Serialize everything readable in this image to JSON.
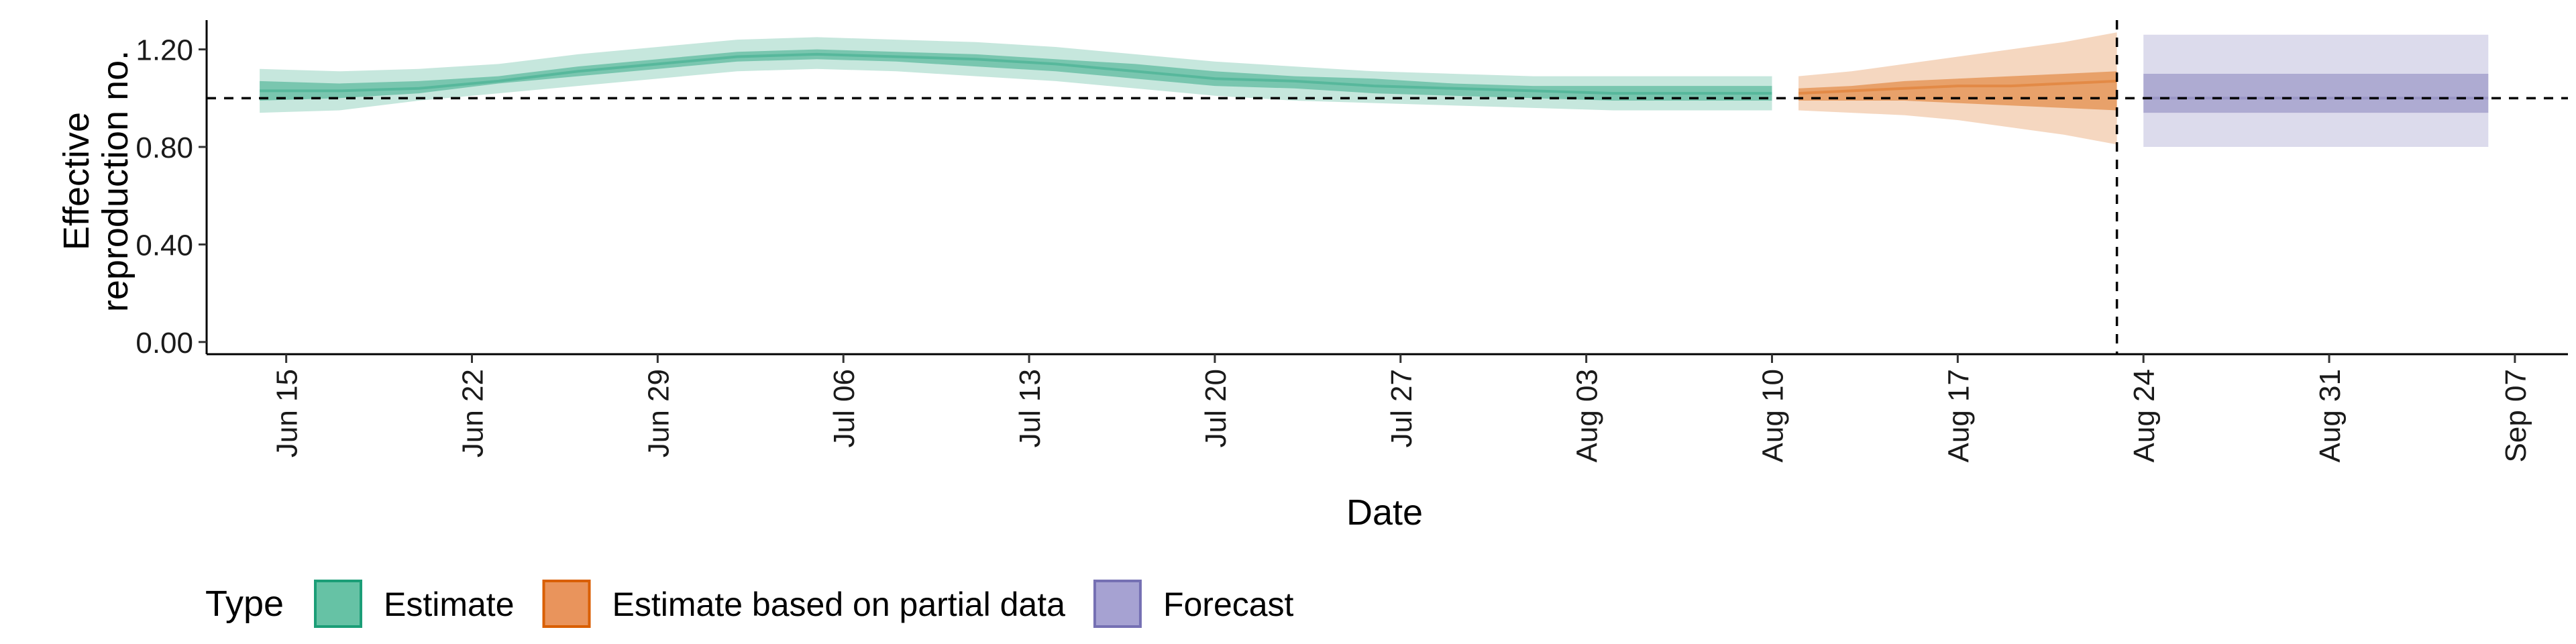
{
  "chart_data": {
    "type": "area",
    "xlabel": "Date",
    "ylabel_lines": [
      "Effective",
      "reproduction no."
    ],
    "yticks": [
      "0.00",
      "0.40",
      "0.80",
      "1.20"
    ],
    "ytick_values": [
      0.0,
      0.4,
      0.8,
      1.2
    ],
    "ylim": [
      -0.05,
      1.32
    ],
    "xlim": [
      "2020-06-12",
      "2020-09-09"
    ],
    "xticks": [
      "Jun 15",
      "Jun 22",
      "Jun 29",
      "Jul 06",
      "Jul 13",
      "Jul 20",
      "Jul 27",
      "Aug 03",
      "Aug 10",
      "Aug 17",
      "Aug 24",
      "Aug 31",
      "Sep 07"
    ],
    "xtick_dates": [
      "2020-06-15",
      "2020-06-22",
      "2020-06-29",
      "2020-07-06",
      "2020-07-13",
      "2020-07-20",
      "2020-07-27",
      "2020-08-03",
      "2020-08-10",
      "2020-08-17",
      "2020-08-24",
      "2020-08-31",
      "2020-09-07"
    ],
    "reference_line_y": 1.0,
    "vertical_line_date": "2020-08-23",
    "grid": false,
    "legend": {
      "title": "Type",
      "position": "bottom-left",
      "items": [
        {
          "label": "Estimate",
          "fill": "#66c2a5",
          "stroke": "#1b9e77"
        },
        {
          "label": "Estimate based on partial data",
          "fill": "#e9945c",
          "stroke": "#d95f02"
        },
        {
          "label": "Forecast",
          "fill": "#a6a2d2",
          "stroke": "#7570b3"
        }
      ]
    },
    "series": [
      {
        "name": "Estimate",
        "color": "#1b9e77",
        "dates": [
          "2020-06-14",
          "2020-06-17",
          "2020-06-20",
          "2020-06-23",
          "2020-06-26",
          "2020-06-29",
          "2020-07-02",
          "2020-07-05",
          "2020-07-08",
          "2020-07-11",
          "2020-07-14",
          "2020-07-17",
          "2020-07-20",
          "2020-07-23",
          "2020-07-26",
          "2020-07-29",
          "2020-08-01",
          "2020-08-04",
          "2020-08-07",
          "2020-08-10"
        ],
        "lower90": [
          0.94,
          0.95,
          0.99,
          1.02,
          1.05,
          1.08,
          1.11,
          1.12,
          1.11,
          1.09,
          1.07,
          1.04,
          1.01,
          0.99,
          0.98,
          0.97,
          0.96,
          0.95,
          0.95,
          0.95
        ],
        "lower50": [
          0.99,
          1.0,
          1.02,
          1.06,
          1.09,
          1.12,
          1.15,
          1.16,
          1.15,
          1.13,
          1.11,
          1.08,
          1.05,
          1.04,
          1.02,
          1.01,
          1.0,
          0.99,
          0.99,
          0.99
        ],
        "median": [
          1.03,
          1.03,
          1.04,
          1.07,
          1.11,
          1.14,
          1.17,
          1.18,
          1.17,
          1.16,
          1.14,
          1.11,
          1.08,
          1.07,
          1.05,
          1.04,
          1.03,
          1.02,
          1.02,
          1.02
        ],
        "upper50": [
          1.07,
          1.06,
          1.07,
          1.09,
          1.13,
          1.16,
          1.19,
          1.2,
          1.19,
          1.18,
          1.16,
          1.14,
          1.11,
          1.09,
          1.08,
          1.06,
          1.05,
          1.05,
          1.05,
          1.05
        ],
        "upper90": [
          1.12,
          1.11,
          1.12,
          1.14,
          1.18,
          1.21,
          1.24,
          1.25,
          1.24,
          1.23,
          1.21,
          1.18,
          1.15,
          1.13,
          1.11,
          1.1,
          1.09,
          1.09,
          1.09,
          1.09
        ]
      },
      {
        "name": "Estimate based on partial data",
        "color": "#d95f02",
        "dates": [
          "2020-08-11",
          "2020-08-13",
          "2020-08-15",
          "2020-08-17",
          "2020-08-19",
          "2020-08-21",
          "2020-08-23"
        ],
        "lower90": [
          0.95,
          0.94,
          0.93,
          0.91,
          0.88,
          0.85,
          0.81
        ],
        "lower50": [
          0.99,
          0.99,
          0.99,
          0.98,
          0.97,
          0.96,
          0.95
        ],
        "median": [
          1.02,
          1.03,
          1.04,
          1.05,
          1.05,
          1.06,
          1.07
        ],
        "upper50": [
          1.04,
          1.05,
          1.07,
          1.08,
          1.09,
          1.1,
          1.11
        ],
        "upper90": [
          1.09,
          1.11,
          1.14,
          1.17,
          1.2,
          1.23,
          1.27
        ]
      },
      {
        "name": "Forecast",
        "color": "#7570b3",
        "dates": [
          "2020-08-24",
          "2020-09-06"
        ],
        "lower90": [
          0.8,
          0.8
        ],
        "lower50": [
          0.94,
          0.94
        ],
        "median": [
          1.0,
          1.0
        ],
        "upper50": [
          1.1,
          1.1
        ],
        "upper90": [
          1.26,
          1.26
        ]
      }
    ]
  }
}
